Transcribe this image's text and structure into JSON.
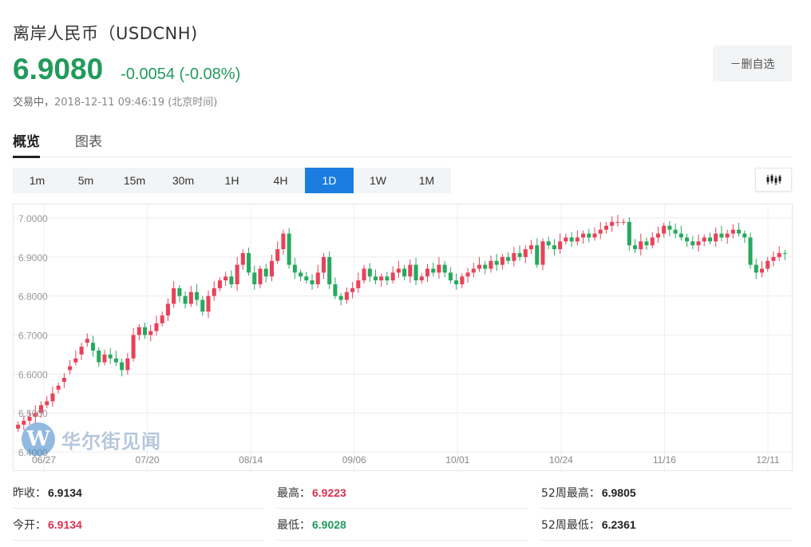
{
  "header": {
    "title": "离岸人民币（USDCNH)",
    "price": "6.9080",
    "change": "-0.0054 (-0.08%)",
    "status": "交易中，",
    "timestamp": "2018-12-11 09:46:19 (北京时间)",
    "remove_watchlist_label": "－删自选"
  },
  "tabs": [
    {
      "label": "概览",
      "active": true
    },
    {
      "label": "图表",
      "active": false
    }
  ],
  "periods": [
    "1m",
    "5m",
    "15m",
    "30m",
    "1H",
    "4H",
    "1D",
    "1W",
    "1M"
  ],
  "active_period": "1D",
  "chart_type_icon": "candlestick-icon",
  "watermark": {
    "logo_letter": "W",
    "text": "华尔街见闻"
  },
  "colors": {
    "up": "#e8425a",
    "down": "#26a95e",
    "accent": "#1a7ddf"
  },
  "chart_data": {
    "type": "candlestick",
    "ylim": [
      6.4,
      7.0
    ],
    "y_ticks": [
      "7.0000",
      "6.9000",
      "6.8000",
      "6.7000",
      "6.6000",
      "6.5000",
      "6.4000"
    ],
    "x_ticks": [
      "06/27",
      "07/20",
      "08/14",
      "09/06",
      "10/01",
      "10/24",
      "11/16",
      "12/11"
    ],
    "grid": true,
    "close": [
      6.47,
      6.48,
      6.49,
      6.5,
      6.52,
      6.53,
      6.55,
      6.57,
      6.59,
      6.62,
      6.64,
      6.67,
      6.69,
      6.66,
      6.63,
      6.65,
      6.64,
      6.63,
      6.61,
      6.64,
      6.7,
      6.72,
      6.7,
      6.71,
      6.73,
      6.75,
      6.78,
      6.82,
      6.8,
      6.78,
      6.81,
      6.79,
      6.76,
      6.8,
      6.82,
      6.84,
      6.85,
      6.83,
      6.88,
      6.91,
      6.86,
      6.83,
      6.87,
      6.85,
      6.89,
      6.92,
      6.96,
      6.88,
      6.86,
      6.85,
      6.84,
      6.83,
      6.86,
      6.9,
      6.83,
      6.8,
      6.79,
      6.81,
      6.82,
      6.84,
      6.87,
      6.85,
      6.84,
      6.85,
      6.84,
      6.86,
      6.87,
      6.85,
      6.88,
      6.84,
      6.85,
      6.87,
      6.86,
      6.88,
      6.86,
      6.84,
      6.83,
      6.85,
      6.86,
      6.87,
      6.88,
      6.87,
      6.89,
      6.88,
      6.9,
      6.89,
      6.91,
      6.9,
      6.92,
      6.93,
      6.88,
      6.94,
      6.93,
      6.92,
      6.94,
      6.95,
      6.94,
      6.95,
      6.96,
      6.95,
      6.96,
      6.97,
      6.98,
      6.99,
      6.99,
      6.99,
      6.93,
      6.92,
      6.94,
      6.93,
      6.95,
      6.96,
      6.98,
      6.97,
      6.96,
      6.95,
      6.94,
      6.93,
      6.94,
      6.95,
      6.94,
      6.96,
      6.95,
      6.96,
      6.97,
      6.96,
      6.95,
      6.88,
      6.86,
      6.87,
      6.89,
      6.9,
      6.91,
      6.908
    ],
    "open": [
      6.46,
      6.47,
      6.48,
      6.49,
      6.5,
      6.52,
      6.53,
      6.56,
      6.58,
      6.61,
      6.63,
      6.65,
      6.68,
      6.68,
      6.66,
      6.63,
      6.65,
      6.64,
      6.63,
      6.61,
      6.64,
      6.7,
      6.72,
      6.7,
      6.71,
      6.73,
      6.75,
      6.78,
      6.82,
      6.8,
      6.78,
      6.81,
      6.79,
      6.76,
      6.8,
      6.82,
      6.84,
      6.85,
      6.83,
      6.88,
      6.91,
      6.86,
      6.83,
      6.87,
      6.85,
      6.89,
      6.92,
      6.96,
      6.88,
      6.86,
      6.85,
      6.84,
      6.83,
      6.86,
      6.9,
      6.83,
      6.8,
      6.79,
      6.81,
      6.82,
      6.84,
      6.87,
      6.85,
      6.84,
      6.85,
      6.84,
      6.86,
      6.87,
      6.85,
      6.88,
      6.84,
      6.85,
      6.87,
      6.86,
      6.88,
      6.86,
      6.84,
      6.83,
      6.85,
      6.86,
      6.87,
      6.88,
      6.87,
      6.89,
      6.88,
      6.9,
      6.89,
      6.91,
      6.9,
      6.92,
      6.93,
      6.88,
      6.94,
      6.93,
      6.92,
      6.94,
      6.95,
      6.94,
      6.95,
      6.96,
      6.95,
      6.96,
      6.97,
      6.98,
      6.99,
      6.99,
      6.99,
      6.93,
      6.92,
      6.94,
      6.93,
      6.95,
      6.96,
      6.98,
      6.97,
      6.96,
      6.95,
      6.94,
      6.93,
      6.94,
      6.95,
      6.94,
      6.96,
      6.95,
      6.96,
      6.97,
      6.96,
      6.95,
      6.88,
      6.86,
      6.87,
      6.89,
      6.9,
      6.91
    ]
  },
  "stats": [
    {
      "label": "昨收：",
      "value": "6.9134",
      "tone": "dark"
    },
    {
      "label": "最高：",
      "value": "6.9223",
      "tone": "red"
    },
    {
      "label": "52周最高：",
      "value": "6.9805",
      "tone": "dark"
    },
    {
      "label": "今开：",
      "value": "6.9134",
      "tone": "red"
    },
    {
      "label": "最低：",
      "value": "6.9028",
      "tone": "green"
    },
    {
      "label": "52周最低：",
      "value": "6.2361",
      "tone": "dark"
    }
  ]
}
